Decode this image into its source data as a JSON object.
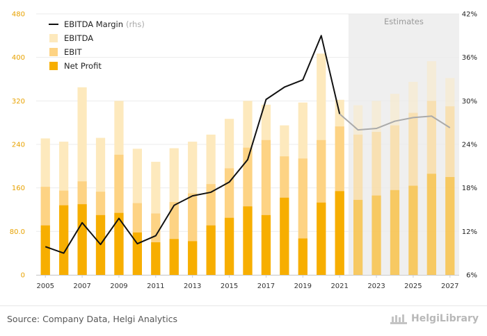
{
  "chart_data": {
    "type": "bar",
    "categories": [
      2005,
      2006,
      2007,
      2008,
      2009,
      2010,
      2011,
      2012,
      2013,
      2014,
      2015,
      2016,
      2017,
      2018,
      2019,
      2020,
      2021,
      2022,
      2023,
      2024,
      2025,
      2026,
      2027
    ],
    "x_tick_labels": [
      "2005",
      "2007",
      "2009",
      "2011",
      "2013",
      "2015",
      "2017",
      "2019",
      "2021",
      "2023",
      "2025",
      "2027"
    ],
    "estimate_start": 2022,
    "estimates_label": "Estimates",
    "ylim_left": [
      0,
      480
    ],
    "left_ticks": [
      {
        "value": 0,
        "label": "0"
      },
      {
        "value": 80,
        "label": "80.0"
      },
      {
        "value": 160,
        "label": "160"
      },
      {
        "value": 240,
        "label": "240"
      },
      {
        "value": 320,
        "label": "320"
      },
      {
        "value": 400,
        "label": "400"
      },
      {
        "value": 480,
        "label": "480"
      }
    ],
    "ylim_right": [
      6,
      42
    ],
    "right_ticks": [
      {
        "value": 6,
        "label": "6%"
      },
      {
        "value": 12,
        "label": "12%"
      },
      {
        "value": 18,
        "label": "18%"
      },
      {
        "value": 24,
        "label": "24%"
      },
      {
        "value": 30,
        "label": "30%"
      },
      {
        "value": 36,
        "label": "36%"
      },
      {
        "value": 42,
        "label": "42%"
      }
    ],
    "series": [
      {
        "name": "EBITDA",
        "kind": "bar",
        "color": "#fde9bd",
        "values": [
          251,
          245,
          345,
          252,
          320,
          232,
          208,
          233,
          245,
          258,
          287,
          320,
          313,
          275,
          317,
          407,
          322,
          312,
          320,
          333,
          355,
          393,
          362
        ]
      },
      {
        "name": "EBIT",
        "kind": "bar",
        "color": "#fdd384",
        "values": [
          162,
          155,
          172,
          153,
          221,
          132,
          113,
          134,
          150,
          167,
          196,
          234,
          248,
          218,
          214,
          248,
          273,
          258,
          263,
          275,
          298,
          320,
          310
        ]
      },
      {
        "name": "Net Profit",
        "kind": "bar",
        "color": "#f7ae00",
        "values": [
          91,
          128,
          130,
          110,
          114,
          78,
          60,
          66,
          62,
          91,
          105,
          126,
          110,
          142,
          67,
          133,
          154,
          138,
          146,
          156,
          164,
          186,
          180
        ]
      },
      {
        "name": "EBITDA Margin",
        "name_suffix": "(rhs)",
        "kind": "line",
        "axis": "right",
        "color": "#111111",
        "estimate_color": "#aaaaaa",
        "values": [
          9.9,
          9.0,
          13.2,
          10.2,
          13.8,
          10.3,
          11.4,
          15.6,
          16.9,
          17.4,
          18.8,
          21.9,
          30.2,
          31.9,
          32.9,
          39.0,
          28.2,
          26.0,
          26.2,
          27.2,
          27.7,
          27.9,
          26.3
        ]
      }
    ],
    "legend_position": "top-left",
    "grid": true
  },
  "footer": {
    "source": "Source: Company Data, Helgi Analytics",
    "brand": "HelgiLibrary"
  },
  "colors": {
    "axis_left": "#e8a200",
    "axis_right": "#222222",
    "estimate_bg": "#efefef",
    "grid": "#ebebeb"
  }
}
